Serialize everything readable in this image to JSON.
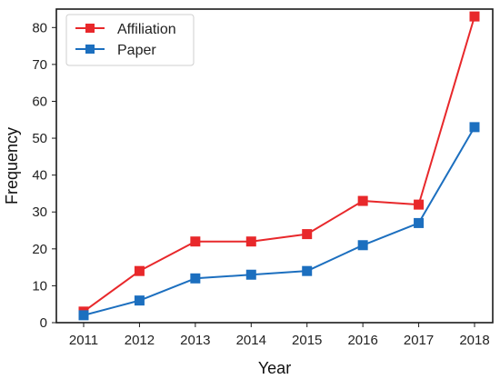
{
  "chart_data": {
    "type": "line",
    "title": "",
    "xlabel": "Year",
    "ylabel": "Frequency",
    "x": [
      "2011",
      "2012",
      "2013",
      "2014",
      "2015",
      "2016",
      "2017",
      "2018"
    ],
    "ylim": [
      0,
      85
    ],
    "yticks": [
      0,
      10,
      20,
      30,
      40,
      50,
      60,
      70,
      80
    ],
    "grid": false,
    "legend_position": "top-left",
    "series": [
      {
        "name": "Affiliation",
        "color": "#e8282b",
        "marker": "square",
        "values": [
          3,
          14,
          22,
          22,
          24,
          33,
          32,
          83
        ]
      },
      {
        "name": "Paper",
        "color": "#1c6fbf",
        "marker": "square",
        "values": [
          2,
          6,
          12,
          13,
          14,
          21,
          27,
          53
        ]
      }
    ]
  }
}
